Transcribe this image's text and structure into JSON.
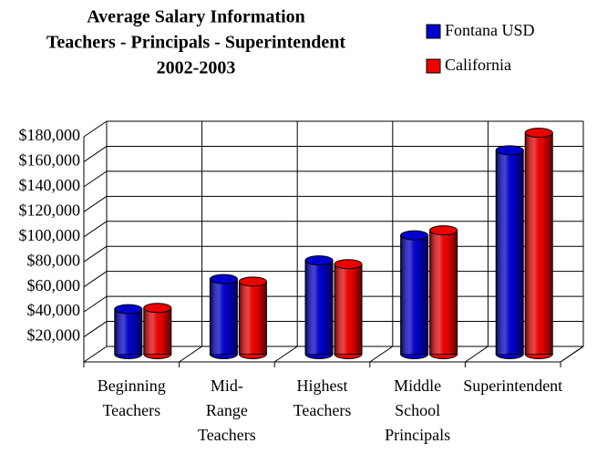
{
  "chart_data": {
    "type": "bar3d",
    "title": [
      "Average Salary Information",
      "Teachers - Principals - Superintendent",
      "2002-2003"
    ],
    "categories": [
      [
        "Beginning",
        "Teachers"
      ],
      [
        "Mid-",
        "Range",
        "Teachers"
      ],
      [
        "Highest",
        "Teachers"
      ],
      [
        "Middle",
        "School",
        "Principals"
      ],
      [
        "Superintendent"
      ]
    ],
    "series": [
      {
        "name": "Fontana USD",
        "color": "#0000cc",
        "values": [
          36000,
          60000,
          75000,
          95000,
          163000
        ]
      },
      {
        "name": "California",
        "color": "#ee0000",
        "values": [
          37000,
          58000,
          72000,
          99000,
          177000
        ]
      }
    ],
    "ylim": [
      0,
      180000
    ],
    "yticks": [
      {
        "value": 20000,
        "label": "$20,000"
      },
      {
        "value": 40000,
        "label": "$40,000"
      },
      {
        "value": 60000,
        "label": "$60,000"
      },
      {
        "value": 80000,
        "label": "$80,000"
      },
      {
        "value": 100000,
        "label": "$100,000"
      },
      {
        "value": 120000,
        "label": "$120,000"
      },
      {
        "value": 140000,
        "label": "$140,000"
      },
      {
        "value": 160000,
        "label": "$160,000"
      },
      {
        "value": 180000,
        "label": "$180,000"
      }
    ],
    "grid": true,
    "legend": "top-right"
  }
}
